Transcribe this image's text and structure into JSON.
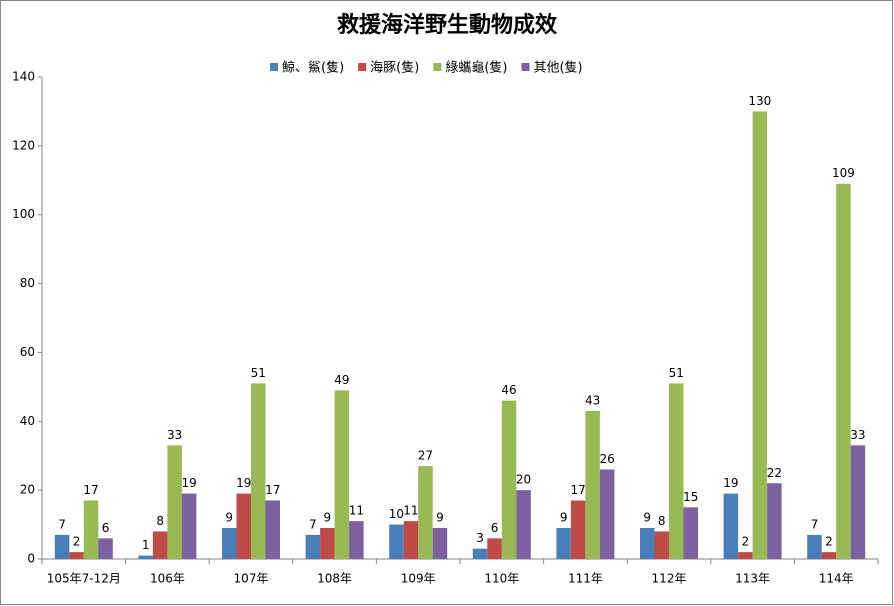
{
  "chart_data": {
    "type": "bar",
    "title": "救援海洋野生動物成效",
    "categories": [
      "105年7-12月",
      "106年",
      "107年",
      "108年",
      "109年",
      "110年",
      "111年",
      "112年",
      "113年",
      "114年"
    ],
    "series": [
      {
        "name": "鯨、鯊(隻)",
        "color": "#4a7ebb",
        "values": [
          7,
          1,
          9,
          7,
          10,
          3,
          9,
          9,
          19,
          7
        ]
      },
      {
        "name": "海豚(隻)",
        "color": "#be4b48",
        "values": [
          2,
          8,
          19,
          9,
          11,
          6,
          17,
          8,
          2,
          2
        ]
      },
      {
        "name": "綠蠵龜(隻)",
        "color": "#98b954",
        "values": [
          17,
          33,
          51,
          49,
          27,
          46,
          43,
          51,
          130,
          109
        ]
      },
      {
        "name": "其他(隻)",
        "color": "#7d60a0",
        "values": [
          6,
          19,
          17,
          11,
          9,
          20,
          26,
          15,
          22,
          33
        ]
      }
    ],
    "ylim": [
      0,
      140
    ],
    "yticks": [
      0,
      20,
      40,
      60,
      80,
      100,
      120,
      140
    ],
    "grid": false,
    "legend": "top"
  }
}
